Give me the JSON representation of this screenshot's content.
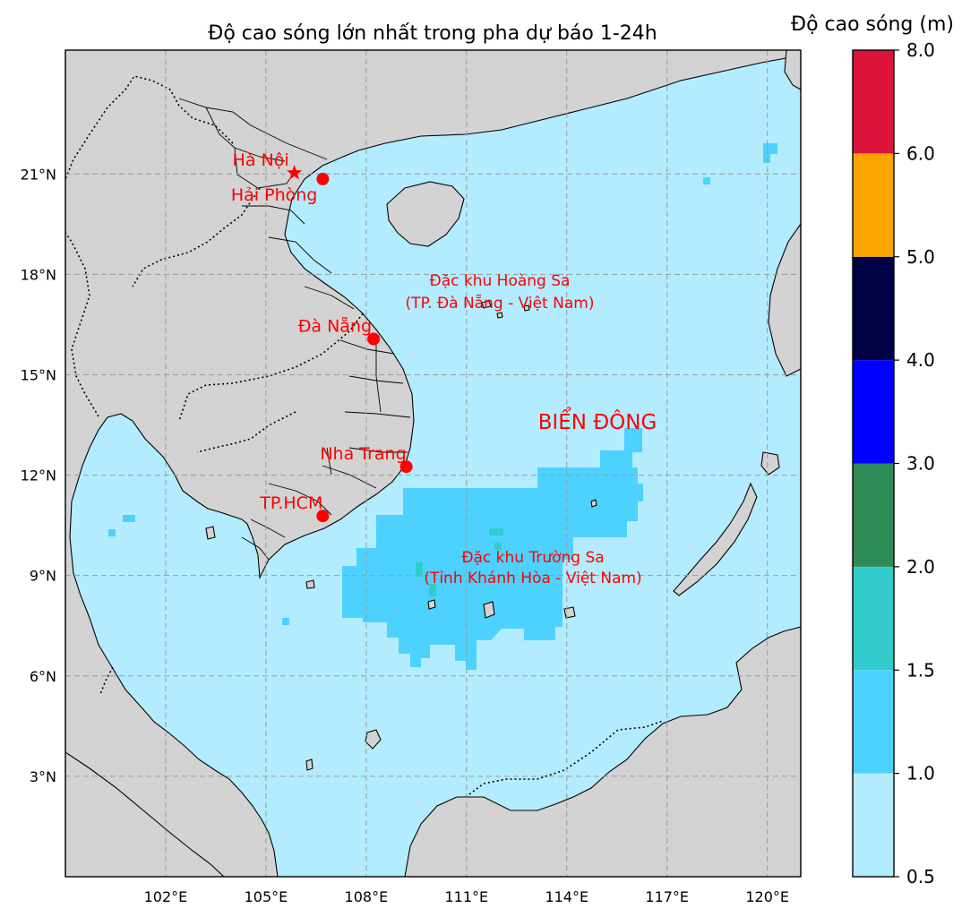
{
  "map": {
    "title": "Độ cao sóng lớn nhất trong pha dự báo 1-24h",
    "extent": {
      "lon_min": 99,
      "lon_max": 121,
      "lat_min": 0,
      "lat_max": 24.7
    },
    "lon_ticks": [
      {
        "value": 102,
        "label": "102°E"
      },
      {
        "value": 105,
        "label": "105°E"
      },
      {
        "value": 108,
        "label": "108°E"
      },
      {
        "value": 111,
        "label": "111°E"
      },
      {
        "value": 114,
        "label": "114°E"
      },
      {
        "value": 117,
        "label": "117°E"
      },
      {
        "value": 120,
        "label": "120°E"
      }
    ],
    "lat_ticks": [
      {
        "value": 3,
        "label": "3°N"
      },
      {
        "value": 6,
        "label": "6°N"
      },
      {
        "value": 9,
        "label": "9°N"
      },
      {
        "value": 12,
        "label": "12°N"
      },
      {
        "value": 15,
        "label": "15°N"
      },
      {
        "value": 18,
        "label": "18°N"
      },
      {
        "value": 21,
        "label": "21°N"
      }
    ],
    "cities": [
      {
        "name": "Hà Nội",
        "lon": 105.85,
        "lat": 21.03,
        "marker": "star"
      },
      {
        "name": "Hải Phòng",
        "lon": 106.7,
        "lat": 20.85,
        "marker": "circle"
      },
      {
        "name": "Đà Nẵng",
        "lon": 108.22,
        "lat": 16.07,
        "marker": "circle"
      },
      {
        "name": "Nha Trang",
        "lon": 109.2,
        "lat": 12.25,
        "marker": "circle"
      },
      {
        "name": "TP.HCM",
        "lon": 106.7,
        "lat": 10.78,
        "marker": "circle"
      }
    ],
    "regions": [
      {
        "lines": [
          "Đặc khu Hoàng Sa",
          "(TP. Đà Nẵng - Việt Nam)"
        ]
      },
      {
        "lines": [
          "Đặc khu Trường Sa",
          "(Tỉnh Khánh Hòa - Việt Nam)"
        ]
      }
    ],
    "sea_label": "BIỂN ĐÔNG"
  },
  "colorbar": {
    "title": "Độ cao sóng (m)",
    "bins": [
      {
        "from": 0.5,
        "to": 1.0,
        "color": "#b3ecff"
      },
      {
        "from": 1.0,
        "to": 1.5,
        "color": "#4dd2ff"
      },
      {
        "from": 1.5,
        "to": 2.0,
        "color": "#33cccc"
      },
      {
        "from": 2.0,
        "to": 3.0,
        "color": "#2e8b57"
      },
      {
        "from": 3.0,
        "to": 4.0,
        "color": "#0000ff"
      },
      {
        "from": 4.0,
        "to": 5.0,
        "color": "#000045"
      },
      {
        "from": 5.0,
        "to": 6.0,
        "color": "#ffa500"
      },
      {
        "from": 6.0,
        "to": 8.0,
        "color": "#dc143c"
      }
    ],
    "tick_labels": [
      "0.5",
      "1.0",
      "1.5",
      "2.0",
      "3.0",
      "4.0",
      "5.0",
      "6.0",
      "8.0"
    ]
  }
}
